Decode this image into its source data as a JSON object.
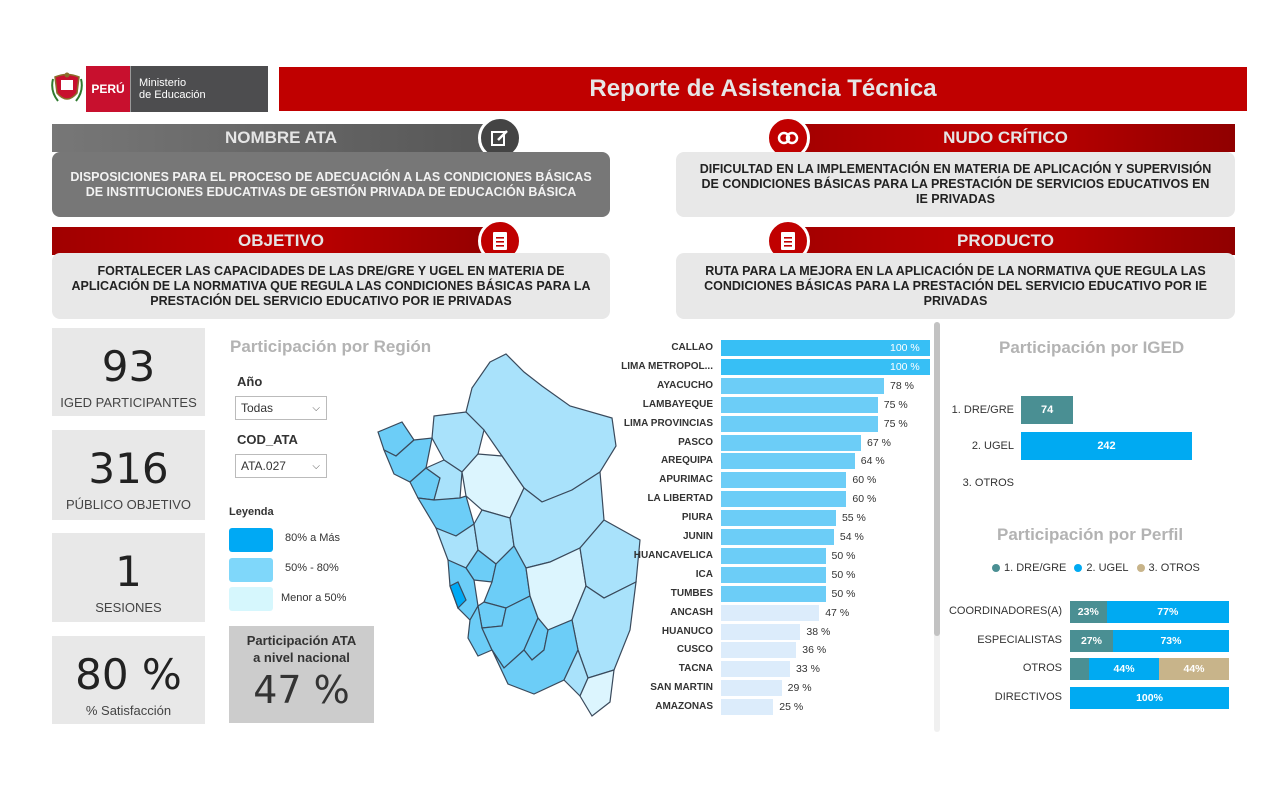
{
  "header": {
    "country": "PERÚ",
    "ministry_line1": "Ministerio",
    "ministry_line2": "de Educación",
    "title": "Reporte de Asistencia Técnica"
  },
  "sections": {
    "nombre_ata": {
      "heading": "NOMBRE ATA",
      "body": "DISPOSICIONES PARA EL PROCESO DE ADECUACIÓN A LAS CONDICIONES BÁSICAS DE INSTITUCIONES EDUCATIVAS DE GESTIÓN PRIVADA DE EDUCACIÓN BÁSICA"
    },
    "nudo_critico": {
      "heading": "NUDO CRÍTICO",
      "body": "DIFICULTAD EN LA IMPLEMENTACIÓN EN MATERIA DE APLICACIÓN Y SUPERVISIÓN DE CONDICIONES BÁSICAS PARA LA PRESTACIÓN DE SERVICIOS EDUCATIVOS EN IE PRIVADAS"
    },
    "objetivo": {
      "heading": "OBJETIVO",
      "body": "FORTALECER LAS CAPACIDADES DE LAS DRE/GRE Y UGEL EN MATERIA DE APLICACIÓN DE LA NORMATIVA QUE REGULA LAS CONDICIONES BÁSICAS PARA LA PRESTACIÓN DEL SERVICIO EDUCATIVO POR IE PRIVADAS"
    },
    "producto": {
      "heading": "PRODUCTO",
      "body": "RUTA PARA LA MEJORA EN LA APLICACIÓN DE LA NORMATIVA QUE REGULA LAS CONDICIONES BÁSICAS PARA LA PRESTACIÓN DEL SERVICIO EDUCATIVO POR IE PRIVADAS"
    }
  },
  "kpis": [
    {
      "value": "93",
      "label": "IGED PARTICIPANTES"
    },
    {
      "value": "316",
      "label": "PÚBLICO OBJETIVO"
    },
    {
      "value": "1",
      "label": "SESIONES"
    },
    {
      "value": "80 %",
      "label": "% Satisfacción"
    }
  ],
  "region_panel": {
    "title": "Participación por Región",
    "filter_year_label": "Año",
    "filter_year_value": "Todas",
    "filter_ata_label": "COD_ATA",
    "filter_ata_value": "ATA.027",
    "legend_title": "Leyenda",
    "legend": [
      {
        "label": "80% a Más",
        "color": "#00a9f4"
      },
      {
        "label": "50% - 80%",
        "color": "#7fd7fa"
      },
      {
        "label": "Menor a 50%",
        "color": "#d6f7fd"
      }
    ],
    "national_title_line1": "Participación ATA",
    "national_title_line2": "a nivel nacional",
    "national_value": "47 %"
  },
  "colors": {
    "bar_high": "#37bff5",
    "bar_mid": "#6ccdf7",
    "bar_low": "#dcecfb",
    "dre": "#4a8f93",
    "ugel": "#00aaf2",
    "otros": "#c8b48a"
  },
  "chart_data": [
    {
      "type": "bar",
      "orientation": "horizontal",
      "categories": [
        "CALLAO",
        "LIMA METROPOL...",
        "AYACUCHO",
        "LAMBAYEQUE",
        "LIMA PROVINCIAS",
        "PASCO",
        "AREQUIPA",
        "APURIMAC",
        "LA LIBERTAD",
        "PIURA",
        "JUNIN",
        "HUANCAVELICA",
        "ICA",
        "TUMBES",
        "ANCASH",
        "HUANUCO",
        "CUSCO",
        "TACNA",
        "SAN MARTIN",
        "AMAZONAS"
      ],
      "values": [
        100,
        100,
        78,
        75,
        75,
        67,
        64,
        60,
        60,
        55,
        54,
        50,
        50,
        50,
        47,
        38,
        36,
        33,
        29,
        25
      ],
      "labels": [
        "100 %",
        "100 %",
        "78 %",
        "75 %",
        "75 %",
        "67 %",
        "64 %",
        "60 %",
        "60 %",
        "55 %",
        "54 %",
        "50 %",
        "50 %",
        "50 %",
        "47 %",
        "38 %",
        "36 %",
        "33 %",
        "29 %",
        "25 %"
      ],
      "xlim": [
        0,
        100
      ]
    },
    {
      "type": "bar",
      "orientation": "horizontal",
      "title": "Participación por IGED",
      "categories": [
        "1. DRE/GRE",
        "2. UGEL",
        "3. OTROS"
      ],
      "values": [
        74,
        242,
        0
      ],
      "labels": [
        "74",
        "242",
        ""
      ]
    },
    {
      "type": "bar",
      "orientation": "horizontal",
      "stacked": true,
      "title": "Participación por Perfil",
      "categories": [
        "COORDINADORES(A)",
        "ESPECIALISTAS",
        "OTROS",
        "DIRECTIVOS"
      ],
      "series": [
        {
          "name": "1. DRE/GRE",
          "values": [
            23,
            27,
            12,
            0
          ],
          "labels": [
            "23%",
            "27%",
            "",
            ""
          ]
        },
        {
          "name": "2. UGEL",
          "values": [
            77,
            73,
            44,
            100
          ],
          "labels": [
            "77%",
            "73%",
            "44%",
            "100%"
          ]
        },
        {
          "name": "3. OTROS",
          "values": [
            0,
            0,
            44,
            0
          ],
          "labels": [
            "",
            "",
            "44%",
            ""
          ]
        }
      ],
      "xlim": [
        0,
        100
      ]
    }
  ]
}
